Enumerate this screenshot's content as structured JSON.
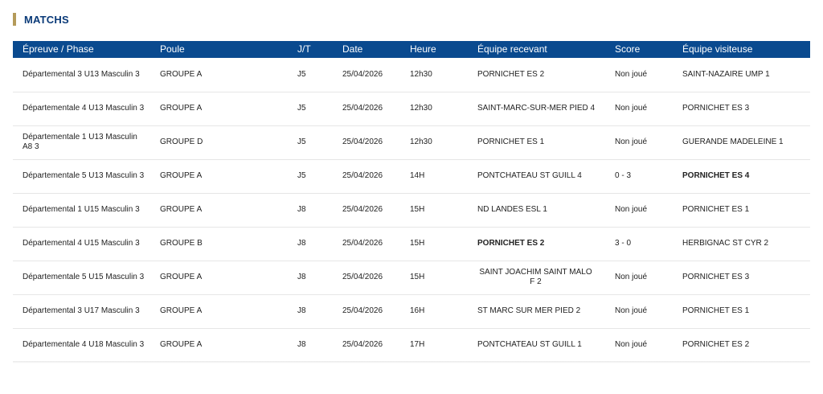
{
  "section": {
    "title": "MATCHS"
  },
  "columns": [
    "Épreuve / Phase",
    "Poule",
    "J/T",
    "Date",
    "Heure",
    "Équipe recevant",
    "Score",
    "Équipe visiteuse"
  ],
  "rows": [
    {
      "epreuve": "Départemental 3 U13 Masculin 3",
      "poule": "GROUPE A",
      "jt": "J5",
      "date": "25/04/2026",
      "heure": "12h30",
      "recevant": "PORNICHET ES 2",
      "score": "Non joué",
      "visiteuse": "SAINT-NAZAIRE UMP 1",
      "winner": ""
    },
    {
      "epreuve": "Départementale 4 U13 Masculin 3",
      "poule": "GROUPE A",
      "jt": "J5",
      "date": "25/04/2026",
      "heure": "12h30",
      "recevant": "SAINT-MARC-SUR-MER PIED 4",
      "score": "Non joué",
      "visiteuse": "PORNICHET ES 3",
      "winner": ""
    },
    {
      "epreuve": "Départementale 1 U13 Masculin A8 3",
      "poule": "GROUPE D",
      "jt": "J5",
      "date": "25/04/2026",
      "heure": "12h30",
      "recevant": "PORNICHET ES 1",
      "score": "Non joué",
      "visiteuse": "GUERANDE MADELEINE 1",
      "winner": ""
    },
    {
      "epreuve": "Départementale 5 U13 Masculin 3",
      "poule": "GROUPE A",
      "jt": "J5",
      "date": "25/04/2026",
      "heure": "14H",
      "recevant": "PONTCHATEAU ST GUILL 4",
      "score": "0 - 3",
      "visiteuse": "PORNICHET ES 4",
      "winner": "visiteuse"
    },
    {
      "epreuve": "Départemental 1 U15 Masculin 3",
      "poule": "GROUPE A",
      "jt": "J8",
      "date": "25/04/2026",
      "heure": "15H",
      "recevant": "ND LANDES ESL 1",
      "score": "Non joué",
      "visiteuse": "PORNICHET ES 1",
      "winner": ""
    },
    {
      "epreuve": "Départemental 4 U15 Masculin 3",
      "poule": "GROUPE B",
      "jt": "J8",
      "date": "25/04/2026",
      "heure": "15H",
      "recevant": "PORNICHET ES 2",
      "score": "3 - 0",
      "visiteuse": "HERBIGNAC ST CYR 2",
      "winner": "recevant"
    },
    {
      "epreuve": "Départementale 5 U15 Masculin 3",
      "poule": "GROUPE A",
      "jt": "J8",
      "date": "25/04/2026",
      "heure": "15H",
      "recevant": "SAINT JOACHIM SAINT MALO F 2",
      "score": "Non joué",
      "visiteuse": "PORNICHET ES 3",
      "winner": "",
      "recevant_centered": true
    },
    {
      "epreuve": "Départemental 3 U17 Masculin 3",
      "poule": "GROUPE A",
      "jt": "J8",
      "date": "25/04/2026",
      "heure": "16H",
      "recevant": "ST MARC SUR MER PIED 2",
      "score": "Non joué",
      "visiteuse": "PORNICHET ES 1",
      "winner": ""
    },
    {
      "epreuve": "Départementale 4 U18 Masculin 3",
      "poule": "GROUPE A",
      "jt": "J8",
      "date": "25/04/2026",
      "heure": "17H",
      "recevant": "PONTCHATEAU ST GUILL 1",
      "score": "Non joué",
      "visiteuse": "PORNICHET ES 2",
      "winner": ""
    }
  ]
}
